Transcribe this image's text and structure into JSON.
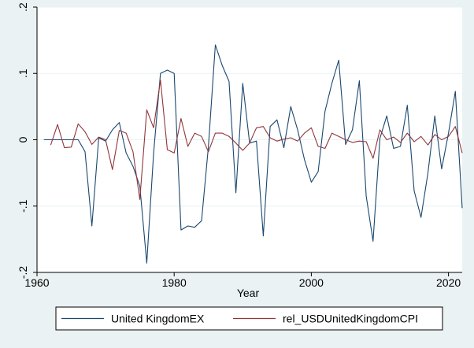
{
  "chart_data": {
    "type": "line",
    "xlabel": "Year",
    "ylabel": "",
    "xlim": [
      1960,
      2022
    ],
    "ylim": [
      -0.2,
      0.2
    ],
    "x_ticks": [
      1960,
      1980,
      2000,
      2020
    ],
    "y_ticks": [
      -0.2,
      -0.1,
      0,
      0.1,
      0.2
    ],
    "x_tick_labels": [
      "1960",
      "1980",
      "2000",
      "2020"
    ],
    "y_tick_labels": [
      "-.2",
      "-.1",
      "0",
      ".1",
      ".2"
    ],
    "grid": "horizontal",
    "legend_position": "bottom",
    "x": [
      1961,
      1962,
      1963,
      1964,
      1965,
      1966,
      1967,
      1968,
      1969,
      1970,
      1971,
      1972,
      1973,
      1974,
      1975,
      1976,
      1977,
      1978,
      1979,
      1980,
      1981,
      1982,
      1983,
      1984,
      1985,
      1986,
      1987,
      1988,
      1989,
      1990,
      1991,
      1992,
      1993,
      1994,
      1995,
      1996,
      1997,
      1998,
      1999,
      2000,
      2001,
      2002,
      2003,
      2004,
      2005,
      2006,
      2007,
      2008,
      2009,
      2010,
      2011,
      2012,
      2013,
      2014,
      2015,
      2016,
      2017,
      2018,
      2019,
      2020,
      2021,
      2022
    ],
    "series": [
      {
        "name": "United KingdomEX",
        "color": "#1a476f",
        "values": [
          0,
          0,
          0,
          0,
          0,
          0,
          -0.018,
          -0.13,
          0.003,
          -0.002,
          0.015,
          0.026,
          -0.02,
          -0.04,
          -0.07,
          -0.186,
          -0.02,
          0.1,
          0.105,
          0.1,
          -0.136,
          -0.13,
          -0.132,
          -0.122,
          -0.01,
          0.143,
          0.112,
          0.088,
          -0.08,
          0.085,
          -0.005,
          -0.002,
          -0.145,
          0.02,
          0.03,
          -0.012,
          0.05,
          0.015,
          -0.03,
          -0.064,
          -0.048,
          0.043,
          0.085,
          0.12,
          -0.007,
          0.015,
          0.089,
          -0.085,
          -0.153,
          0.002,
          0.036,
          -0.013,
          -0.01,
          0.052,
          -0.077,
          -0.117,
          -0.05,
          0.036,
          -0.044,
          0.01,
          0.073,
          -0.103
        ]
      },
      {
        "name": "rel_USDUnitedKingdomCPI",
        "color": "#90353b",
        "values": [
          null,
          -0.008,
          0.023,
          -0.012,
          -0.011,
          0.024,
          0.012,
          -0.007,
          0.004,
          0,
          -0.045,
          0.014,
          0.01,
          -0.018,
          -0.09,
          0.045,
          0.018,
          0.09,
          -0.015,
          -0.02,
          0.032,
          -0.01,
          0.01,
          0.005,
          -0.018,
          0.01,
          0.01,
          0.005,
          -0.005,
          -0.016,
          -0.005,
          0.018,
          0.02,
          0.003,
          -0.002,
          0.001,
          0.003,
          -0.002,
          0.01,
          0.018,
          -0.01,
          -0.013,
          0.01,
          0.005,
          0,
          -0.004,
          -0.002,
          -0.003,
          -0.028,
          0.015,
          0,
          0.004,
          -0.004,
          0.01,
          -0.003,
          0.005,
          -0.008,
          0.008,
          0,
          0.005,
          0.02,
          -0.02
        ]
      }
    ]
  }
}
